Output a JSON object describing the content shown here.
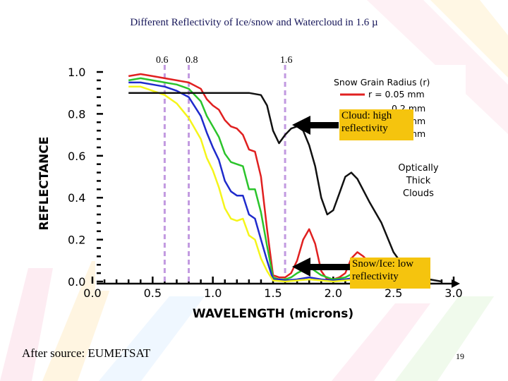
{
  "slide": {
    "title": "Different Reflectivity of  Ice/snow and Watercloud in 1.6 µ",
    "wavelength_markers": [
      "0.6",
      "0.8",
      "1.6"
    ],
    "callout_cloud": [
      "Cloud: high",
      "reflectivity"
    ],
    "callout_snow": [
      "Snow/Ice: low",
      "reflectivity"
    ],
    "source": "After source: EUMETSAT",
    "page_number": "19"
  },
  "chart_data": {
    "type": "line",
    "xlabel": "WAVELENGTH (microns)",
    "ylabel": "REFLECTANCE",
    "xlim": [
      0.0,
      3.0
    ],
    "ylim": [
      0.0,
      1.0
    ],
    "x_ticks": [
      "0.0",
      "0.5",
      "1.0",
      "1.5",
      "2.0",
      "2.5",
      "3.0"
    ],
    "y_ticks": [
      "0.0",
      "0.2",
      "0.4",
      "0.6",
      "0.8",
      "1.0"
    ],
    "legend_title": "Snow Grain Radius (r)",
    "legend_entries": [
      "r = 0.05 mm",
      "0.2 mm",
      "0.5 mm",
      "1.0 mm"
    ],
    "annotation": [
      "Optically",
      "Thick",
      "Clouds"
    ],
    "vertical_markers": [
      0.6,
      0.8,
      1.6
    ],
    "series": [
      {
        "name": "r = 0.05 mm",
        "color": "#e02020",
        "x": [
          0.3,
          0.4,
          0.5,
          0.6,
          0.7,
          0.8,
          0.9,
          0.95,
          1.0,
          1.05,
          1.1,
          1.15,
          1.2,
          1.25,
          1.3,
          1.35,
          1.4,
          1.45,
          1.5,
          1.55,
          1.6,
          1.65,
          1.7,
          1.75,
          1.8,
          1.85,
          1.9,
          1.95,
          2.0,
          2.05,
          2.1,
          2.15,
          2.2,
          2.25,
          2.3,
          2.4,
          2.5,
          2.6
        ],
        "y": [
          0.98,
          0.99,
          0.98,
          0.97,
          0.96,
          0.95,
          0.92,
          0.87,
          0.84,
          0.82,
          0.77,
          0.74,
          0.73,
          0.7,
          0.63,
          0.62,
          0.5,
          0.25,
          0.03,
          0.02,
          0.02,
          0.04,
          0.1,
          0.2,
          0.25,
          0.18,
          0.05,
          0.01,
          0.01,
          0.02,
          0.04,
          0.11,
          0.14,
          0.12,
          0.09,
          0.05,
          0.02,
          0.01
        ]
      },
      {
        "name": "0.2 mm",
        "color": "#2bc42b",
        "x": [
          0.3,
          0.4,
          0.5,
          0.6,
          0.7,
          0.8,
          0.9,
          0.95,
          1.0,
          1.05,
          1.1,
          1.15,
          1.2,
          1.25,
          1.3,
          1.35,
          1.4,
          1.45,
          1.5,
          1.55,
          1.6,
          1.65,
          1.7,
          1.8,
          1.9,
          2.0,
          2.1,
          2.2,
          2.3,
          2.4,
          2.5
        ],
        "y": [
          0.96,
          0.97,
          0.96,
          0.95,
          0.94,
          0.92,
          0.86,
          0.79,
          0.74,
          0.69,
          0.61,
          0.57,
          0.56,
          0.55,
          0.44,
          0.44,
          0.33,
          0.17,
          0.02,
          0.01,
          0.01,
          0.02,
          0.04,
          0.07,
          0.03,
          0.01,
          0.02,
          0.05,
          0.04,
          0.02,
          0.01
        ]
      },
      {
        "name": "0.5 mm",
        "color": "#1f2bcc",
        "x": [
          0.3,
          0.4,
          0.5,
          0.6,
          0.7,
          0.8,
          0.9,
          0.95,
          1.0,
          1.05,
          1.1,
          1.15,
          1.2,
          1.25,
          1.3,
          1.35,
          1.4,
          1.45,
          1.5,
          1.55,
          1.6,
          1.7,
          1.8,
          1.9,
          2.0,
          2.1,
          2.2,
          2.3,
          2.5
        ],
        "y": [
          0.95,
          0.95,
          0.94,
          0.93,
          0.91,
          0.88,
          0.79,
          0.71,
          0.64,
          0.58,
          0.48,
          0.43,
          0.41,
          0.41,
          0.32,
          0.3,
          0.2,
          0.1,
          0.01,
          0.01,
          0.005,
          0.01,
          0.02,
          0.01,
          0.005,
          0.01,
          0.02,
          0.02,
          0.005
        ]
      },
      {
        "name": "1.0 mm",
        "color": "#f5f51a",
        "x": [
          0.3,
          0.4,
          0.5,
          0.6,
          0.7,
          0.8,
          0.9,
          0.95,
          1.0,
          1.05,
          1.1,
          1.15,
          1.2,
          1.25,
          1.3,
          1.35,
          1.4,
          1.45,
          1.5,
          1.6,
          1.7,
          1.8,
          1.9,
          2.0,
          2.2,
          2.4
        ],
        "y": [
          0.93,
          0.93,
          0.91,
          0.89,
          0.85,
          0.78,
          0.68,
          0.59,
          0.53,
          0.45,
          0.35,
          0.3,
          0.29,
          0.3,
          0.22,
          0.2,
          0.11,
          0.05,
          0.005,
          0.0,
          0.005,
          0.01,
          0.005,
          0.0,
          0.01,
          0.0
        ]
      },
      {
        "name": "Optically Thick Clouds",
        "color": "#111111",
        "x": [
          0.3,
          0.4,
          0.5,
          0.6,
          0.7,
          0.8,
          0.9,
          1.0,
          1.1,
          1.2,
          1.3,
          1.4,
          1.45,
          1.5,
          1.55,
          1.6,
          1.65,
          1.7,
          1.75,
          1.8,
          1.85,
          1.9,
          1.95,
          2.0,
          2.05,
          2.1,
          2.15,
          2.2,
          2.3,
          2.4,
          2.5,
          2.6,
          2.7,
          2.8,
          2.9
        ],
        "y": [
          0.9,
          0.9,
          0.9,
          0.9,
          0.9,
          0.9,
          0.9,
          0.9,
          0.9,
          0.9,
          0.9,
          0.89,
          0.84,
          0.72,
          0.66,
          0.7,
          0.73,
          0.74,
          0.72,
          0.65,
          0.55,
          0.4,
          0.32,
          0.34,
          0.42,
          0.5,
          0.52,
          0.49,
          0.38,
          0.28,
          0.14,
          0.06,
          0.03,
          0.01,
          0.0
        ]
      }
    ]
  }
}
